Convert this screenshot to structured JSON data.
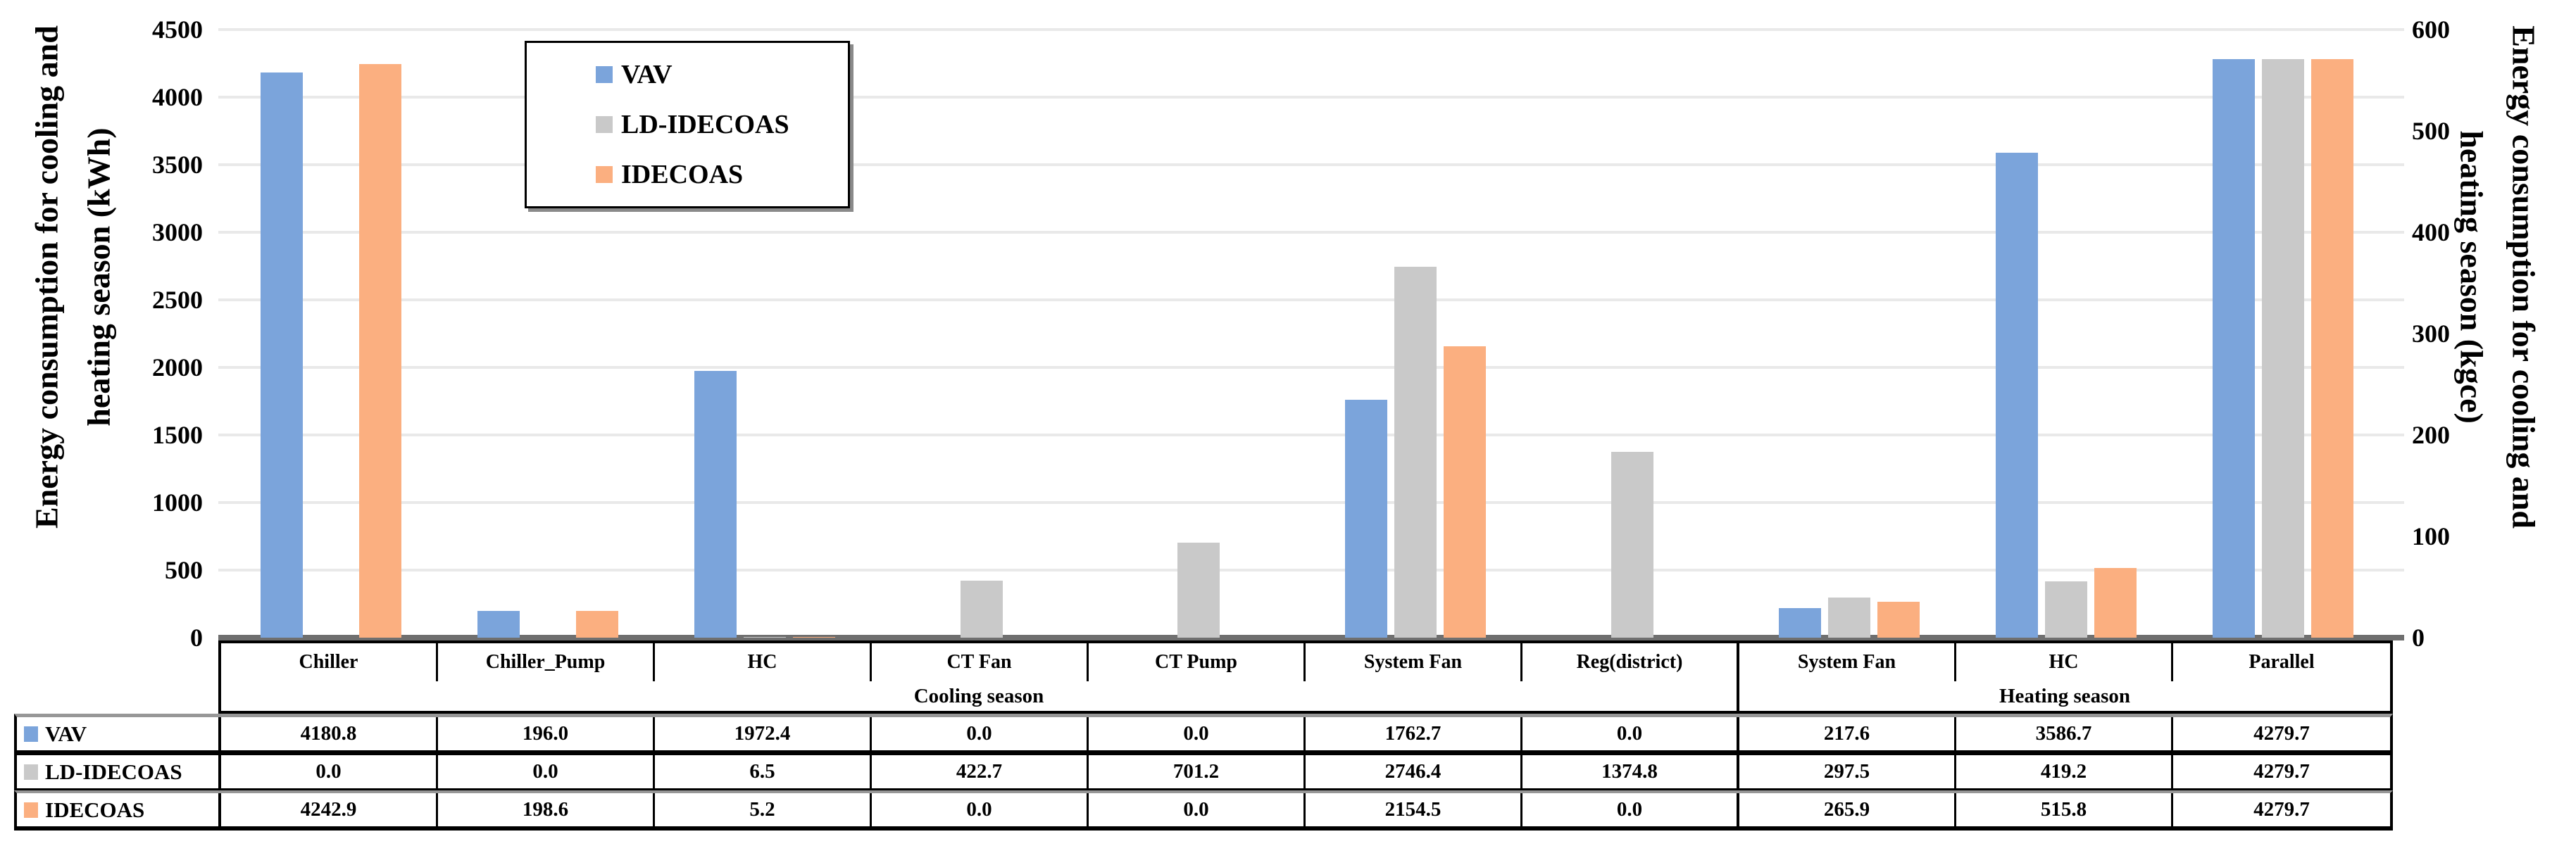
{
  "chart_data": {
    "type": "bar",
    "title": "",
    "categories": [
      "Chiller",
      "Chiller_Pump",
      "HC",
      "CT Fan",
      "CT Pump",
      "System Fan",
      "Reg(district)",
      "System Fan",
      "HC",
      "Parallel"
    ],
    "series": [
      {
        "name": "VAV",
        "color": "#7BA4DB",
        "values": [
          4180.8,
          196.0,
          1972.4,
          0.0,
          0.0,
          1762.7,
          0.0,
          217.6,
          3586.7,
          4279.7
        ]
      },
      {
        "name": "LD-IDECOAS",
        "color": "#C9C9C9",
        "values": [
          0.0,
          0.0,
          6.5,
          422.7,
          701.2,
          2746.4,
          1374.8,
          297.5,
          419.2,
          4279.7
        ]
      },
      {
        "name": "IDECOAS",
        "color": "#FBAF80",
        "values": [
          4242.9,
          198.6,
          5.2,
          0.0,
          0.0,
          2154.5,
          0.0,
          265.9,
          515.8,
          4279.7
        ]
      }
    ],
    "season_groups": [
      {
        "label": "Cooling season",
        "span": 7
      },
      {
        "label": "Heating season",
        "span": 3
      }
    ],
    "left_axis": {
      "title_line1": "Energy consumption for cooling and",
      "title_line2": "heating season (kWh)",
      "min": 0,
      "max": 4500,
      "step": 500,
      "ticks": [
        0,
        500,
        1000,
        1500,
        2000,
        2500,
        3000,
        3500,
        4000,
        4500
      ]
    },
    "right_axis": {
      "title_line1": "Energy consumption for cooling and",
      "title_line2": "heating season (kgce)",
      "min": 0,
      "max": 600,
      "step": 100,
      "ticks": [
        0,
        100,
        200,
        300,
        400,
        500,
        600
      ]
    },
    "grid": true,
    "legend_position": "inside-top-left",
    "value_decimals": 1,
    "styles": {
      "gridline_color": "#E9E9E9",
      "axis_line_color": "#6F6F6F",
      "table_border_color": "#000000",
      "table_thick_separator_color": "#979797"
    }
  }
}
